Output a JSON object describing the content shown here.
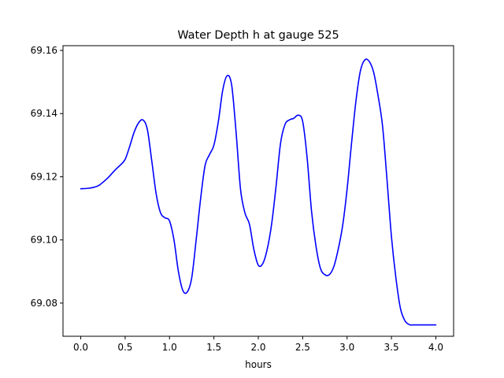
{
  "chart_data": {
    "type": "line",
    "title": "Water Depth h at gauge 525",
    "xlabel": "hours",
    "ylabel": "",
    "xlim": [
      -0.2,
      4.2
    ],
    "ylim": [
      69.0695,
      69.1615
    ],
    "xticks": [
      0.0,
      0.5,
      1.0,
      1.5,
      2.0,
      2.5,
      3.0,
      3.5,
      4.0
    ],
    "xtick_labels": [
      "0.0",
      "0.5",
      "1.0",
      "1.5",
      "2.0",
      "2.5",
      "3.0",
      "3.5",
      "4.0"
    ],
    "yticks": [
      69.08,
      69.1,
      69.12,
      69.14,
      69.16
    ],
    "ytick_labels": [
      "69.08",
      "69.10",
      "69.12",
      "69.14",
      "69.16"
    ],
    "grid": false,
    "line_color": "#0000ff",
    "series": [
      {
        "name": "",
        "x": [
          0.0,
          0.1,
          0.2,
          0.3,
          0.35,
          0.4,
          0.45,
          0.5,
          0.55,
          0.6,
          0.65,
          0.7,
          0.75,
          0.8,
          0.85,
          0.9,
          0.95,
          1.0,
          1.05,
          1.1,
          1.15,
          1.2,
          1.25,
          1.3,
          1.35,
          1.4,
          1.45,
          1.5,
          1.55,
          1.6,
          1.65,
          1.7,
          1.75,
          1.8,
          1.85,
          1.9,
          1.95,
          2.0,
          2.05,
          2.1,
          2.15,
          2.2,
          2.25,
          2.3,
          2.35,
          2.4,
          2.45,
          2.5,
          2.55,
          2.6,
          2.65,
          2.7,
          2.75,
          2.8,
          2.85,
          2.9,
          2.95,
          3.0,
          3.05,
          3.1,
          3.15,
          3.2,
          3.25,
          3.3,
          3.35,
          3.4,
          3.45,
          3.5,
          3.55,
          3.6,
          3.65,
          3.7,
          3.75,
          3.8,
          3.85,
          3.9,
          3.95,
          4.0
        ],
        "y": [
          69.1162,
          69.1164,
          69.1172,
          69.1195,
          69.121,
          69.1225,
          69.1238,
          69.1255,
          69.1295,
          69.134,
          69.137,
          69.138,
          69.135,
          69.125,
          69.1145,
          69.1085,
          69.107,
          69.106,
          69.1,
          69.09,
          69.084,
          69.0835,
          69.088,
          69.1,
          69.113,
          69.1235,
          69.127,
          69.13,
          69.1375,
          69.1475,
          69.152,
          69.149,
          69.134,
          69.116,
          69.1085,
          69.105,
          69.097,
          69.092,
          69.0925,
          69.097,
          69.105,
          69.117,
          69.1305,
          69.1365,
          69.138,
          69.1385,
          69.1395,
          69.1375,
          69.126,
          69.109,
          69.098,
          69.091,
          69.089,
          69.089,
          69.0915,
          69.097,
          69.1045,
          69.116,
          69.1305,
          69.144,
          69.1535,
          69.157,
          69.1565,
          69.153,
          69.1455,
          69.136,
          69.119,
          69.101,
          69.088,
          69.0785,
          69.0745,
          69.0732,
          69.0731,
          69.0731,
          69.0731,
          69.0731,
          69.0731,
          69.0731
        ]
      }
    ]
  }
}
